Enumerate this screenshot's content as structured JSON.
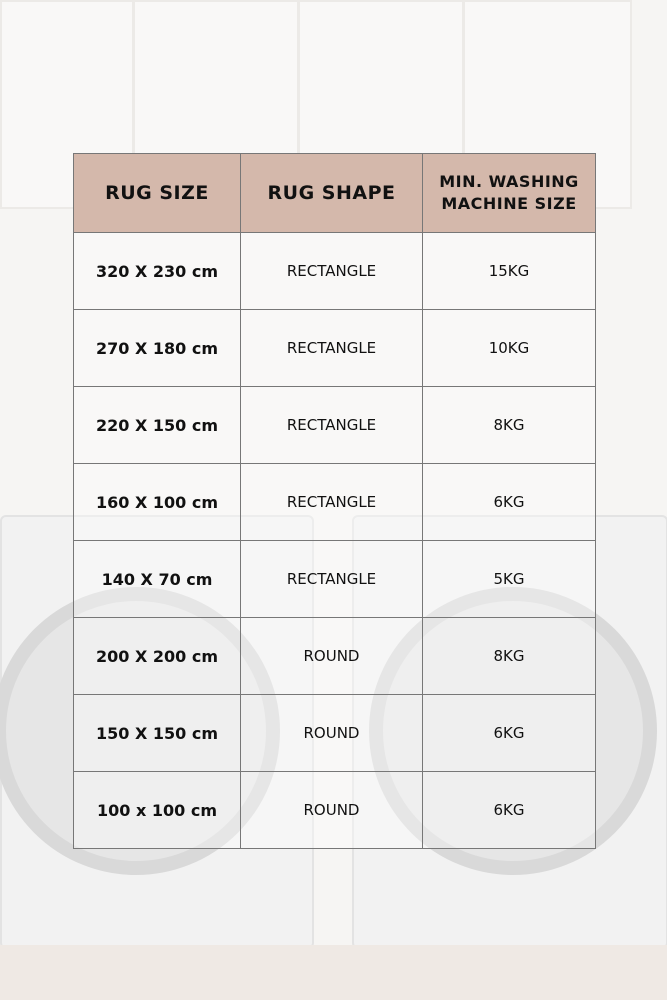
{
  "colors": {
    "header_bg": "#d4b8ab",
    "border": "#777777"
  },
  "headers": [
    "RUG SIZE",
    "RUG SHAPE",
    "MIN. WASHING MACHINE SIZE"
  ],
  "rows": [
    {
      "size": "320 X 230 cm",
      "shape": "RECTANGLE",
      "machine": "15KG"
    },
    {
      "size": "270 X 180 cm",
      "shape": "RECTANGLE",
      "machine": "10KG"
    },
    {
      "size": "220 X 150 cm",
      "shape": "RECTANGLE",
      "machine": "8KG"
    },
    {
      "size": "160 X 100 cm",
      "shape": "RECTANGLE",
      "machine": "6KG"
    },
    {
      "size": "140 X 70 cm",
      "shape": "RECTANGLE",
      "machine": "5KG"
    },
    {
      "size": "200 X 200 cm",
      "shape": "ROUND",
      "machine": "8KG"
    },
    {
      "size": "150 X 150 cm",
      "shape": "ROUND",
      "machine": "6KG"
    },
    {
      "size": "100 x 100 cm",
      "shape": "ROUND",
      "machine": "6KG"
    }
  ]
}
